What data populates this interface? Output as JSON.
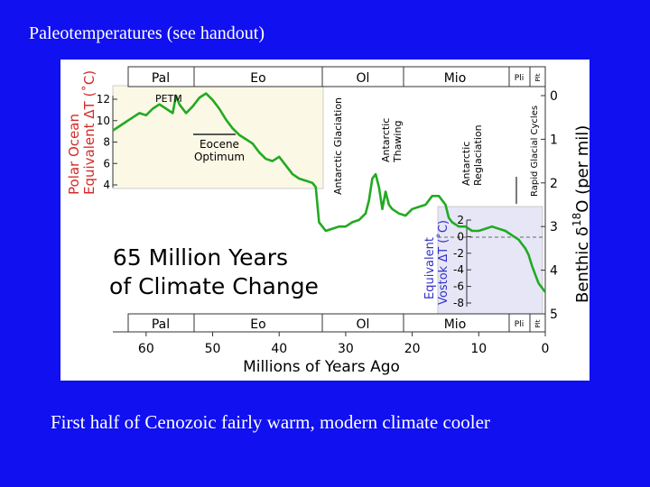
{
  "slide": {
    "title": "Paleotemperatures  (see handout)",
    "caption": "First half of Cenozoic fairly warm, modern climate cooler"
  },
  "chart_data": {
    "type": "line",
    "title_line1": "65 Million Years",
    "title_line2": "of Climate Change",
    "xlabel": "Millions of Years Ago",
    "xlim": [
      65,
      0
    ],
    "x_ticks": [
      "60",
      "50",
      "40",
      "30",
      "20",
      "10",
      "0"
    ],
    "right_axis": {
      "label_prefix": "Benthic δ",
      "label_sup": "18",
      "label_suffix": "O (per mil)",
      "ticks": [
        "0",
        "1",
        "2",
        "3",
        "4",
        "5"
      ],
      "ylim": [
        5,
        0
      ]
    },
    "left_axis": {
      "label_line1": "Polar Ocean",
      "label_line2": "Equivalent ΔT (˚C)",
      "ticks": [
        "12",
        "10",
        "8",
        "6",
        "4"
      ]
    },
    "vostok_axis": {
      "label_line1": "Equivalent",
      "label_line2": "Vostok ΔT (˚C)",
      "ticks": [
        "2",
        "0",
        "-2",
        "-4",
        "-6",
        "-8"
      ]
    },
    "epochs": [
      "Pal",
      "Eo",
      "Ol",
      "Mio",
      "Pli",
      "Plt"
    ],
    "annotations": {
      "petm": "PETM",
      "eocene_line1": "Eocene",
      "eocene_line2": "Optimum",
      "antarctic_glaciation": "Antarctic Glaciation",
      "antarctic_thawing_line1": "Antarctic",
      "antarctic_thawing_line2": "Thawing",
      "antarctic_reglaciation_line1": "Antarctic",
      "antarctic_reglaciation_line2": "Reglaciation",
      "rapid_glacial_cycles": "Rapid Glacial Cycles"
    },
    "series": [
      {
        "x": [
          65,
          64,
          63,
          62,
          61,
          60,
          59,
          58,
          57,
          56,
          55.5,
          55,
          54,
          53,
          52,
          51,
          50,
          49,
          48,
          47,
          46,
          45,
          44,
          43,
          42,
          41,
          40,
          39,
          38,
          37,
          36,
          35,
          34.5,
          34,
          33.5,
          33,
          32,
          31,
          30,
          29,
          28,
          27,
          26.5,
          26,
          25.5,
          25,
          24.5,
          24,
          23.5,
          23,
          22,
          21,
          20,
          19,
          18,
          17,
          16,
          15,
          14.5,
          14,
          13.5,
          13,
          12,
          11,
          10,
          9,
          8,
          7,
          6,
          5,
          4.5,
          4,
          3.5,
          3,
          2.5,
          2,
          1.5,
          1,
          0.5,
          0
        ],
        "y": [
          0.8,
          0.7,
          0.6,
          0.5,
          0.4,
          0.45,
          0.3,
          0.2,
          0.3,
          0.4,
          0.0,
          0.2,
          0.4,
          0.25,
          0.05,
          -0.05,
          0.1,
          0.3,
          0.55,
          0.75,
          0.9,
          1.0,
          1.1,
          1.3,
          1.45,
          1.5,
          1.4,
          1.6,
          1.8,
          1.9,
          1.95,
          2.0,
          2.1,
          2.9,
          3.0,
          3.1,
          3.05,
          3.0,
          3.0,
          2.9,
          2.85,
          2.7,
          2.4,
          1.9,
          1.8,
          2.1,
          2.6,
          2.2,
          2.5,
          2.6,
          2.7,
          2.75,
          2.6,
          2.55,
          2.5,
          2.3,
          2.3,
          2.5,
          2.8,
          2.9,
          2.95,
          3.0,
          3.0,
          3.1,
          3.1,
          3.05,
          3.0,
          3.05,
          3.1,
          3.2,
          3.25,
          3.3,
          3.4,
          3.5,
          3.65,
          3.9,
          4.1,
          4.3,
          4.4,
          4.5
        ]
      }
    ]
  }
}
